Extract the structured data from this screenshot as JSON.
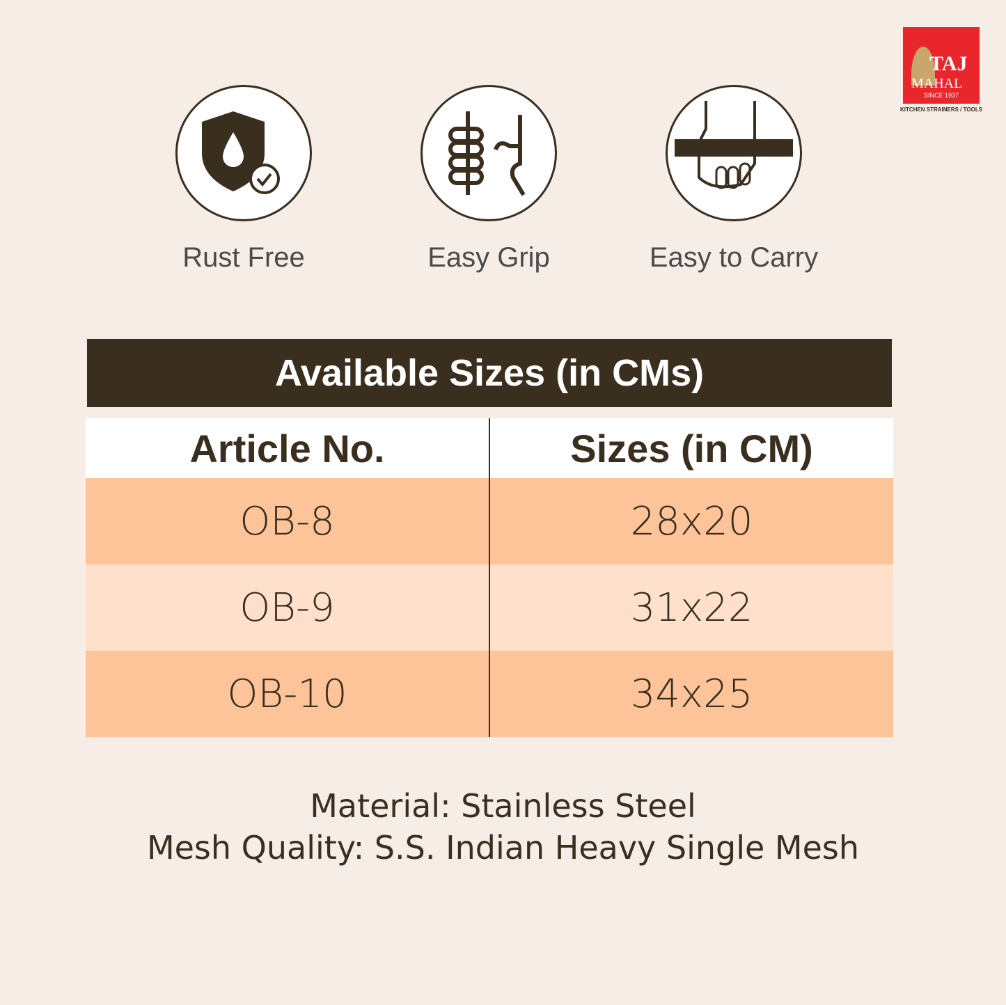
{
  "brand": {
    "name_line1": "TAJ",
    "name_line2": "MAHAL",
    "since": "SINCE 1937",
    "tagline": "KITCHEN STRAINERS / TOOLS",
    "color": "#e8262c"
  },
  "features": [
    {
      "label": "Rust Free",
      "icon": "shield-drop-check-icon"
    },
    {
      "label": "Easy Grip",
      "icon": "hand-grip-icon"
    },
    {
      "label": "Easy to Carry",
      "icon": "hand-carry-icon"
    }
  ],
  "table": {
    "title": "Available Sizes (in CMs)",
    "headers": [
      "Article No.",
      "Sizes (in CM)"
    ],
    "rows": [
      [
        "OB-8",
        "28x20"
      ],
      [
        "OB-9",
        "31x22"
      ],
      [
        "OB-10",
        "34x25"
      ]
    ]
  },
  "footer": {
    "material": "Material: Stainless Steel",
    "mesh": "Mesh Quality: S.S. Indian Heavy Single Mesh"
  }
}
